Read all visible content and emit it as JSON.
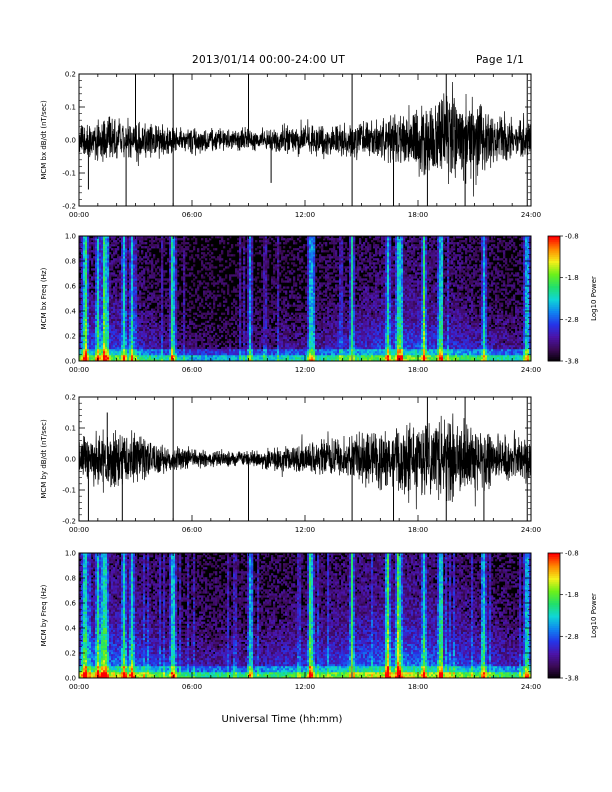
{
  "header": {
    "title": "2013/01/14  00:00-24:00 UT",
    "page": "Page 1/1"
  },
  "footer": {
    "xlabel": "Universal Time (hh:mm)"
  },
  "colors": {
    "trace": "#000000",
    "background": "#ffffff",
    "colormap": [
      "#000000",
      "#3b0a55",
      "#4b13a8",
      "#2535e8",
      "#0f86f0",
      "#0fd6d6",
      "#22e06a",
      "#6cf01a",
      "#f3f01a",
      "#ff8a00",
      "#ff0000"
    ]
  },
  "chart_data": [
    {
      "type": "line",
      "ylabel": "MCM bx dB/dt (nT/sec)",
      "xlim": [
        "00:00",
        "24:00"
      ],
      "ylim": [
        -0.2,
        0.2
      ],
      "xticks": [
        "00:00",
        "06:00",
        "12:00",
        "18:00",
        "24:00"
      ],
      "yticks": [
        "-0.2",
        "-0.1",
        "0.0",
        "0.1",
        "0.2"
      ],
      "series": [
        {
          "x_hours": [
            0,
            1,
            2,
            3,
            4,
            5,
            6,
            7,
            8,
            9,
            10,
            11,
            12,
            13,
            14,
            15,
            16,
            17,
            18,
            19,
            20,
            21,
            22,
            23,
            24
          ],
          "envelope_amplitude": [
            0.06,
            0.07,
            0.08,
            0.07,
            0.06,
            0.05,
            0.05,
            0.04,
            0.04,
            0.04,
            0.04,
            0.05,
            0.05,
            0.06,
            0.06,
            0.07,
            0.08,
            0.09,
            0.11,
            0.14,
            0.16,
            0.15,
            0.09,
            0.07,
            0.07
          ],
          "spikes": [
            {
              "x": 0.5,
              "y": -0.15
            },
            {
              "x": 2.5,
              "y": -0.2
            },
            {
              "x": 3.0,
              "y": 0.2
            },
            {
              "x": 5.0,
              "y": 0.2
            },
            {
              "x": 5.0,
              "y": -0.2
            },
            {
              "x": 9.0,
              "y": 0.2
            },
            {
              "x": 10.2,
              "y": -0.13
            },
            {
              "x": 14.5,
              "y": 0.2
            },
            {
              "x": 14.5,
              "y": -0.2
            },
            {
              "x": 16.7,
              "y": -0.2
            },
            {
              "x": 18.5,
              "y": -0.2
            },
            {
              "x": 19.5,
              "y": 0.2
            },
            {
              "x": 20.5,
              "y": -0.2
            },
            {
              "x": 23.8,
              "y": 0.2
            },
            {
              "x": 23.8,
              "y": -0.2
            }
          ]
        }
      ]
    },
    {
      "type": "heatmap",
      "ylabel": "MCM bx Freq (Hz)",
      "colorbar_label": "Log10 Power",
      "colorbar_ticks": [
        "-0.8",
        "-1.8",
        "-2.8",
        "-3.8"
      ],
      "clim": [
        -3.8,
        -0.8
      ],
      "xlim": [
        "00:00",
        "24:00"
      ],
      "ylim": [
        0.0,
        1.0
      ],
      "xticks": [
        "00:00",
        "06:00",
        "12:00",
        "18:00",
        "24:00"
      ],
      "yticks": [
        "0.0",
        "0.2",
        "0.4",
        "0.6",
        "0.8",
        "1.0"
      ],
      "x_hours": [
        0,
        1,
        2,
        3,
        4,
        5,
        6,
        7,
        8,
        9,
        10,
        11,
        12,
        13,
        14,
        15,
        16,
        17,
        18,
        19,
        20,
        21,
        22,
        23,
        24
      ],
      "activity": [
        0.45,
        0.55,
        0.5,
        0.45,
        0.35,
        0.25,
        0.2,
        0.2,
        0.2,
        0.2,
        0.25,
        0.3,
        0.3,
        0.35,
        0.4,
        0.45,
        0.5,
        0.55,
        0.55,
        0.5,
        0.45,
        0.4,
        0.35,
        0.3,
        0.3
      ],
      "vertical_bands_hours": [
        0.3,
        1.0,
        1.4,
        2.4,
        2.8,
        5.0,
        9.1,
        12.3,
        14.5,
        16.4,
        17.0,
        18.3,
        19.2,
        21.5,
        23.8
      ]
    },
    {
      "type": "line",
      "ylabel": "MCM by dB/dt (nT/sec)",
      "xlim": [
        "00:00",
        "24:00"
      ],
      "ylim": [
        -0.2,
        0.2
      ],
      "xticks": [
        "00:00",
        "06:00",
        "12:00",
        "18:00",
        "24:00"
      ],
      "yticks": [
        "-0.2",
        "-0.1",
        "0.0",
        "0.1",
        "0.2"
      ],
      "series": [
        {
          "x_hours": [
            0,
            1,
            2,
            3,
            4,
            5,
            6,
            7,
            8,
            9,
            10,
            11,
            12,
            13,
            14,
            15,
            16,
            17,
            18,
            19,
            20,
            21,
            22,
            23,
            24
          ],
          "envelope_amplitude": [
            0.08,
            0.1,
            0.11,
            0.09,
            0.07,
            0.05,
            0.04,
            0.03,
            0.03,
            0.03,
            0.04,
            0.05,
            0.06,
            0.07,
            0.08,
            0.1,
            0.11,
            0.12,
            0.13,
            0.15,
            0.15,
            0.13,
            0.1,
            0.09,
            0.08
          ],
          "spikes": [
            {
              "x": 0.5,
              "y": -0.2
            },
            {
              "x": 1.5,
              "y": 0.15
            },
            {
              "x": 2.3,
              "y": -0.2
            },
            {
              "x": 5.0,
              "y": 0.2
            },
            {
              "x": 5.0,
              "y": -0.2
            },
            {
              "x": 9.0,
              "y": -0.2
            },
            {
              "x": 14.5,
              "y": -0.2
            },
            {
              "x": 16.7,
              "y": -0.2
            },
            {
              "x": 18.5,
              "y": 0.2
            },
            {
              "x": 19.5,
              "y": -0.2
            },
            {
              "x": 20.5,
              "y": 0.2
            },
            {
              "x": 21.5,
              "y": -0.2
            },
            {
              "x": 23.8,
              "y": 0.2
            },
            {
              "x": 23.8,
              "y": -0.2
            }
          ]
        }
      ]
    },
    {
      "type": "heatmap",
      "ylabel": "MCM by Freq (Hz)",
      "colorbar_label": "Log10 Power",
      "colorbar_ticks": [
        "-0.8",
        "-1.8",
        "-2.8",
        "-3.8"
      ],
      "clim": [
        -3.8,
        -0.8
      ],
      "xlim": [
        "00:00",
        "24:00"
      ],
      "ylim": [
        0.0,
        1.0
      ],
      "xticks": [
        "00:00",
        "06:00",
        "12:00",
        "18:00",
        "24:00"
      ],
      "yticks": [
        "0.0",
        "0.2",
        "0.4",
        "0.6",
        "0.8",
        "1.0"
      ],
      "x_hours": [
        0,
        1,
        2,
        3,
        4,
        5,
        6,
        7,
        8,
        9,
        10,
        11,
        12,
        13,
        14,
        15,
        16,
        17,
        18,
        19,
        20,
        21,
        22,
        23,
        24
      ],
      "activity": [
        0.6,
        0.7,
        0.65,
        0.6,
        0.5,
        0.4,
        0.35,
        0.35,
        0.35,
        0.35,
        0.4,
        0.45,
        0.45,
        0.5,
        0.55,
        0.6,
        0.65,
        0.7,
        0.65,
        0.6,
        0.55,
        0.5,
        0.45,
        0.4,
        0.4
      ],
      "vertical_bands_hours": [
        0.3,
        1.0,
        1.4,
        2.4,
        2.8,
        5.0,
        9.1,
        12.3,
        14.5,
        16.4,
        17.0,
        18.3,
        19.2,
        21.5,
        23.8
      ]
    }
  ]
}
